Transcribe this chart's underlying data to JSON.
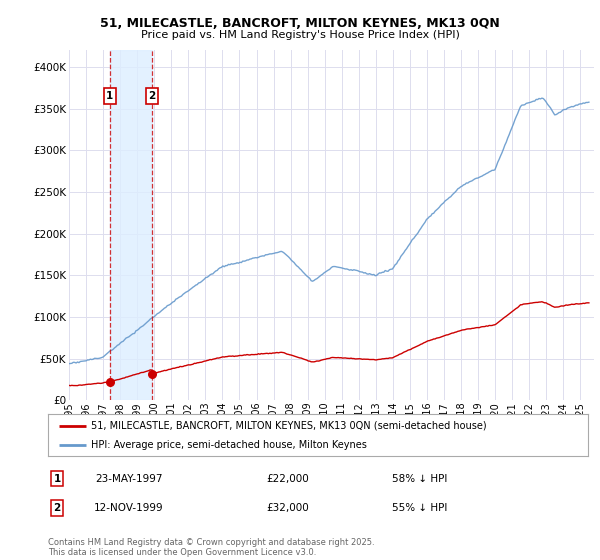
{
  "title_line1": "51, MILECASTLE, BANCROFT, MILTON KEYNES, MK13 0QN",
  "title_line2": "Price paid vs. HM Land Registry's House Price Index (HPI)",
  "bg_color": "#ffffff",
  "plot_bg": "#ffffff",
  "grid_color": "#ddddee",
  "red_color": "#cc0000",
  "blue_color": "#6699cc",
  "shade_color": "#ddeeff",
  "purchases": [
    {
      "date_num": 1997.39,
      "price": 22000,
      "label": "1"
    },
    {
      "date_num": 1999.87,
      "price": 32000,
      "label": "2"
    }
  ],
  "legend_entries": [
    "51, MILECASTLE, BANCROFT, MILTON KEYNES, MK13 0QN (semi-detached house)",
    "HPI: Average price, semi-detached house, Milton Keynes"
  ],
  "table_rows": [
    [
      "1",
      "23-MAY-1997",
      "£22,000",
      "58% ↓ HPI"
    ],
    [
      "2",
      "12-NOV-1999",
      "£32,000",
      "55% ↓ HPI"
    ]
  ],
  "footer": "Contains HM Land Registry data © Crown copyright and database right 2025.\nThis data is licensed under the Open Government Licence v3.0.",
  "ylim": [
    0,
    420000
  ],
  "xlim_start": 1995.0,
  "xlim_end": 2025.8,
  "yticks": [
    0,
    50000,
    100000,
    150000,
    200000,
    250000,
    300000,
    350000,
    400000
  ],
  "ytick_labels": [
    "£0",
    "£50K",
    "£100K",
    "£150K",
    "£200K",
    "£250K",
    "£300K",
    "£350K",
    "£400K"
  ],
  "xticks": [
    1995,
    1996,
    1997,
    1998,
    1999,
    2000,
    2001,
    2002,
    2003,
    2004,
    2005,
    2006,
    2007,
    2008,
    2009,
    2010,
    2011,
    2012,
    2013,
    2014,
    2015,
    2016,
    2017,
    2018,
    2019,
    2020,
    2021,
    2022,
    2023,
    2024,
    2025
  ]
}
